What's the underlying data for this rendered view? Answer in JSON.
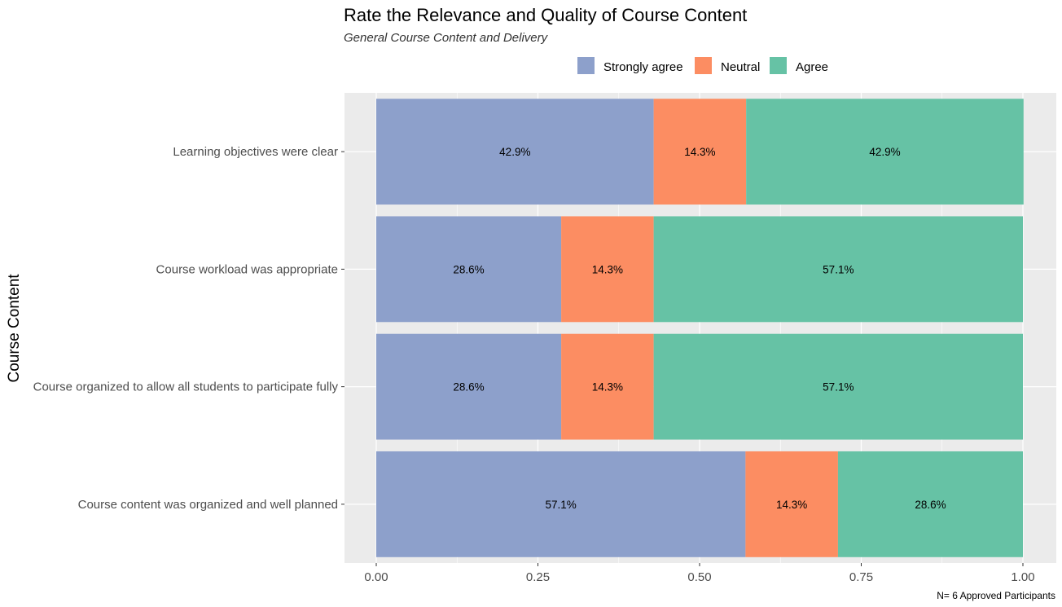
{
  "chart_data": {
    "type": "bar",
    "orientation": "horizontal",
    "stacked": true,
    "title": "Rate the Relevance and Quality of Course Content",
    "subtitle": "General Course Content and Delivery",
    "xlabel": "",
    "ylabel": "Course Content",
    "caption": "N= 6 Approved Participants",
    "xlim": [
      0,
      1
    ],
    "xticks": [
      "0.00",
      "0.25",
      "0.50",
      "0.75",
      "1.00"
    ],
    "grid": true,
    "legend_position": "top",
    "categories": [
      "Learning objectives were clear",
      "Course workload was appropriate",
      "Course organized to allow all students to participate fully",
      "Course content was organized and well planned"
    ],
    "series": [
      {
        "name": "Strongly agree",
        "color": "#8DA0CB",
        "values": [
          0.429,
          0.286,
          0.286,
          0.571
        ],
        "labels": [
          "42.9%",
          "28.6%",
          "28.6%",
          "57.1%"
        ]
      },
      {
        "name": "Neutral",
        "color": "#FC8D62",
        "values": [
          0.143,
          0.143,
          0.143,
          0.143
        ],
        "labels": [
          "14.3%",
          "14.3%",
          "14.3%",
          "14.3%"
        ]
      },
      {
        "name": "Agree",
        "color": "#66C2A5",
        "values": [
          0.429,
          0.571,
          0.571,
          0.286
        ],
        "labels": [
          "42.9%",
          "57.1%",
          "57.1%",
          "28.6%"
        ]
      }
    ]
  }
}
